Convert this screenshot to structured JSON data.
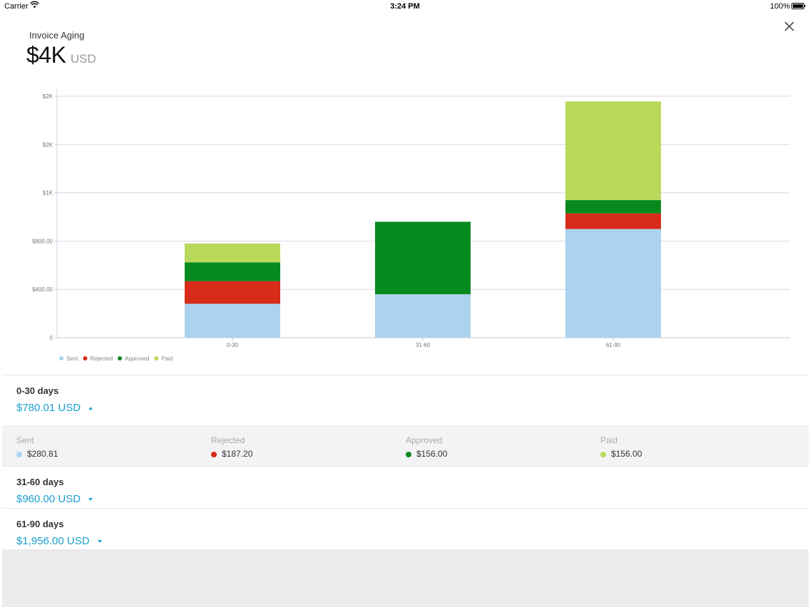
{
  "status_bar": {
    "carrier": "Carrier",
    "time": "3:24 PM",
    "battery": "100%"
  },
  "header": {
    "title": "Invoice Aging",
    "amount": "$4K",
    "currency": "USD"
  },
  "colors": {
    "sent": "#acd3ee",
    "rejected": "#d72c1a",
    "approved": "#068a1e",
    "paid": "#b8d95a",
    "accent": "#1aa0d0"
  },
  "chart_data": {
    "type": "bar",
    "stacked": true,
    "categories": [
      "0-30",
      "31-60",
      "61-90"
    ],
    "series": [
      {
        "name": "Sent",
        "values": [
          280.81,
          360,
          900
        ]
      },
      {
        "name": "Rejected",
        "values": [
          187.2,
          0,
          130
        ]
      },
      {
        "name": "Approved",
        "values": [
          156.0,
          600,
          110
        ]
      },
      {
        "name": "Paid",
        "values": [
          156.0,
          0,
          816
        ]
      }
    ],
    "ylim": [
      0,
      2000
    ],
    "yticks": [
      0,
      400,
      800,
      1200,
      1600,
      2000
    ],
    "ytick_labels": [
      "0",
      "$400.00",
      "$800.00",
      "$1K",
      "$2K",
      "$2K"
    ],
    "grid": true,
    "legend": "bottom-left",
    "title": "",
    "xlabel": "",
    "ylabel": ""
  },
  "buckets": [
    {
      "label": "0-30 days",
      "total": "$780.01 USD",
      "expanded": true,
      "details": [
        {
          "label": "Sent",
          "value": "$280.81"
        },
        {
          "label": "Rejected",
          "value": "$187.20"
        },
        {
          "label": "Approved",
          "value": "$156.00"
        },
        {
          "label": "Paid",
          "value": "$156.00"
        }
      ]
    },
    {
      "label": "31-60 days",
      "total": "$960.00 USD",
      "expanded": false
    },
    {
      "label": "61-90 days",
      "total": "$1,956.00 USD",
      "expanded": false
    }
  ],
  "icons": {
    "close": "close-icon",
    "wifi": "wifi-icon",
    "battery": "battery-icon"
  }
}
